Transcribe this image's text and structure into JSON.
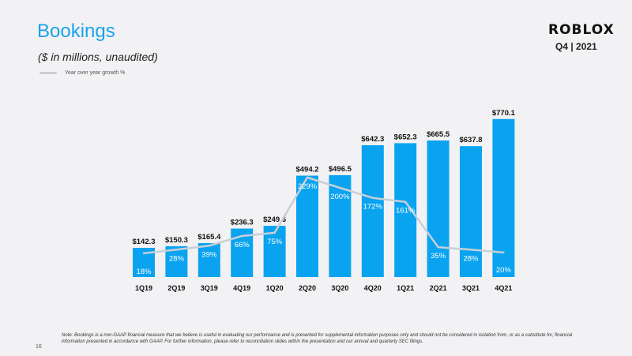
{
  "header": {
    "title": "Bookings",
    "subtitle": "($ in millions,  unaudited)",
    "logo": "ROBLOX",
    "quarter": "Q4 | 2021"
  },
  "footnote": "Note: Bookings is a non-GAAP financial measure that we believe is useful in evaluating our performance and is presented for supplemental information purposes only and should not be considered in isolation from, or as a substitute for, financial information presented in accordance with GAAP. For further information, please refer to reconciliation slides within the presentation and our annual and quarterly SEC filings.",
  "page_number": "16",
  "colors": {
    "bar": "#0aa3f0",
    "line": "#c9cfd7",
    "title": "#1aa3e8"
  },
  "chart_data": {
    "type": "bar",
    "title": "Bookings",
    "categories": [
      "1Q19",
      "2Q19",
      "3Q19",
      "4Q19",
      "1Q20",
      "2Q20",
      "3Q20",
      "4Q20",
      "1Q21",
      "2Q21",
      "3Q21",
      "4Q21"
    ],
    "series": [
      {
        "name": "Bookings",
        "type": "bar",
        "values": [
          142.3,
          150.3,
          165.4,
          236.3,
          249.6,
          494.2,
          496.5,
          642.3,
          652.3,
          665.5,
          637.8,
          770.1
        ],
        "labels": [
          "$142.3",
          "$150.3",
          "$165.4",
          "$236.3",
          "$249.6",
          "$494.2",
          "$496.5",
          "$642.3",
          "$652.3",
          "$665.5",
          "$637.8",
          "$770.1"
        ]
      },
      {
        "name": "Year over year growth %",
        "type": "line",
        "values": [
          18,
          28,
          39,
          66,
          75,
          229,
          200,
          172,
          161,
          35,
          28,
          20
        ],
        "labels": [
          "18%",
          "28%",
          "39%",
          "66%",
          "75%",
          "229%",
          "200%",
          "172%",
          "161%",
          "35%",
          "28%",
          "20%"
        ]
      }
    ],
    "legend": [
      "Year over year growth %"
    ],
    "legend_position": "top-left",
    "ylim": [
      0,
      800
    ],
    "line_ylim": [
      0,
      400
    ],
    "grid": false
  }
}
